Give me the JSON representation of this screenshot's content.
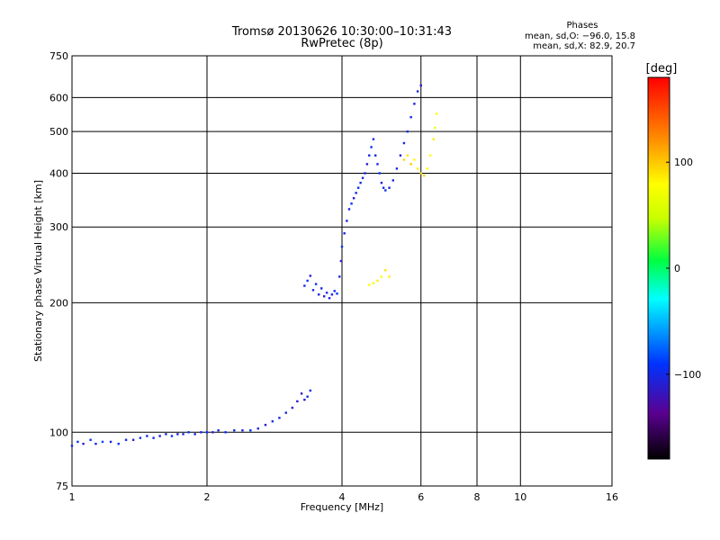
{
  "chart_data": {
    "type": "scatter",
    "title": "Tromsø 20130626 10:30:00–10:31:43",
    "subtitle": "RwPretec (8p)",
    "xlabel": "Frequency [MHz]",
    "ylabel": "Stationary phase Virtual Height [km]",
    "x_scale": "log",
    "y_scale": "log",
    "xlim": [
      1,
      16
    ],
    "ylim": [
      75,
      750
    ],
    "x_ticks": [
      1,
      2,
      4,
      6,
      8,
      10,
      16
    ],
    "x_tick_labels": [
      "1",
      "2",
      "4",
      "6",
      "8",
      "10",
      "16"
    ],
    "y_ticks": [
      75,
      100,
      200,
      300,
      400,
      500,
      600,
      750
    ],
    "y_tick_labels": [
      "75",
      "100",
      "200",
      "300",
      "400",
      "500",
      "600",
      "750"
    ],
    "grid": true,
    "stats_title": "Phases",
    "stats_lines": [
      "mean, sd,O: −96.0, 15.8",
      "mean, sd,X:  82.9, 20.7"
    ],
    "colorbar": {
      "label": "[deg]",
      "range": [
        -180,
        180
      ],
      "ticks": [
        100,
        0,
        -100
      ],
      "tick_labels": [
        "100",
        "0",
        "−100"
      ],
      "colormap": "rainbow (black→purple→blue→cyan→green→yellow→red)"
    },
    "series": [
      {
        "mode": "O",
        "points": [
          [
            1.0,
            93,
            -100
          ],
          [
            1.03,
            95,
            -90
          ],
          [
            1.06,
            94,
            -110
          ],
          [
            1.1,
            96,
            -95
          ],
          [
            1.13,
            94,
            -100
          ],
          [
            1.17,
            95,
            -85
          ],
          [
            1.22,
            95,
            -105
          ],
          [
            1.27,
            94,
            -95
          ],
          [
            1.32,
            96,
            -100
          ],
          [
            1.37,
            96,
            -110
          ],
          [
            1.42,
            97,
            -90
          ],
          [
            1.47,
            98,
            -100
          ],
          [
            1.52,
            97,
            -95
          ],
          [
            1.57,
            98,
            -105
          ],
          [
            1.62,
            99,
            -100
          ],
          [
            1.67,
            98,
            -90
          ],
          [
            1.72,
            99,
            -110
          ],
          [
            1.77,
            99,
            -100
          ],
          [
            1.82,
            100,
            -95
          ],
          [
            1.88,
            99,
            -105
          ],
          [
            1.94,
            100,
            -100
          ],
          [
            2.0,
            100,
            -90
          ],
          [
            2.06,
            100,
            -110
          ],
          [
            2.12,
            101,
            -100
          ],
          [
            2.2,
            100,
            -95
          ],
          [
            2.3,
            101,
            -100
          ],
          [
            2.4,
            101,
            -105
          ],
          [
            2.5,
            101,
            -90
          ],
          [
            2.6,
            102,
            -100
          ],
          [
            2.7,
            104,
            -110
          ],
          [
            2.8,
            106,
            -95
          ],
          [
            2.9,
            108,
            -100
          ],
          [
            3.0,
            111,
            -105
          ],
          [
            3.1,
            114,
            -110
          ],
          [
            3.18,
            118,
            -115
          ],
          [
            3.25,
            123,
            -120
          ],
          [
            3.3,
            119,
            -110
          ],
          [
            3.35,
            121,
            -100
          ],
          [
            3.4,
            125,
            -95
          ],
          [
            3.3,
            219,
            -100
          ],
          [
            3.35,
            225,
            -90
          ],
          [
            3.4,
            231,
            -110
          ],
          [
            3.45,
            214,
            -100
          ],
          [
            3.5,
            221,
            -95
          ],
          [
            3.55,
            209,
            -105
          ],
          [
            3.6,
            216,
            -100
          ],
          [
            3.65,
            207,
            -110
          ],
          [
            3.7,
            211,
            -95
          ],
          [
            3.75,
            205,
            -100
          ],
          [
            3.8,
            209,
            -105
          ],
          [
            3.85,
            213,
            -100
          ],
          [
            3.9,
            210,
            -90
          ],
          [
            3.95,
            230,
            -100
          ],
          [
            3.98,
            250,
            -110
          ],
          [
            4.0,
            270,
            -95
          ],
          [
            4.05,
            290,
            -100
          ],
          [
            4.1,
            310,
            -105
          ],
          [
            4.15,
            330,
            -100
          ],
          [
            4.2,
            340,
            -90
          ],
          [
            4.25,
            350,
            -110
          ],
          [
            4.3,
            360,
            -100
          ],
          [
            4.35,
            370,
            -95
          ],
          [
            4.4,
            380,
            -100
          ],
          [
            4.45,
            390,
            -105
          ],
          [
            4.5,
            400,
            -100
          ],
          [
            4.55,
            420,
            -110
          ],
          [
            4.6,
            440,
            -100
          ],
          [
            4.65,
            460,
            -95
          ],
          [
            4.7,
            480,
            -100
          ],
          [
            4.75,
            440,
            -105
          ],
          [
            4.8,
            420,
            -100
          ],
          [
            4.85,
            400,
            -90
          ],
          [
            4.9,
            380,
            -110
          ],
          [
            4.95,
            370,
            -100
          ],
          [
            5.0,
            365,
            -95
          ],
          [
            5.1,
            370,
            -100
          ],
          [
            5.2,
            385,
            -105
          ],
          [
            5.3,
            410,
            -100
          ],
          [
            5.4,
            440,
            -110
          ],
          [
            5.5,
            470,
            -100
          ],
          [
            5.6,
            500,
            -95
          ],
          [
            5.7,
            540,
            -100
          ],
          [
            5.8,
            580,
            -105
          ],
          [
            5.9,
            620,
            -100
          ],
          [
            6.0,
            640,
            -110
          ]
        ]
      },
      {
        "mode": "X",
        "points": [
          [
            4.6,
            220,
            80
          ],
          [
            4.7,
            222,
            75
          ],
          [
            4.8,
            225,
            85
          ],
          [
            4.9,
            230,
            80
          ],
          [
            5.0,
            238,
            90
          ],
          [
            5.1,
            230,
            85
          ],
          [
            5.5,
            430,
            95
          ],
          [
            5.6,
            440,
            90
          ],
          [
            5.7,
            420,
            100
          ],
          [
            5.8,
            430,
            80
          ],
          [
            5.9,
            410,
            85
          ],
          [
            6.0,
            400,
            90
          ],
          [
            6.1,
            395,
            95
          ],
          [
            6.2,
            410,
            80
          ],
          [
            6.3,
            440,
            75
          ],
          [
            6.4,
            480,
            85
          ],
          [
            6.45,
            510,
            70
          ],
          [
            6.5,
            550,
            80
          ]
        ]
      }
    ]
  }
}
